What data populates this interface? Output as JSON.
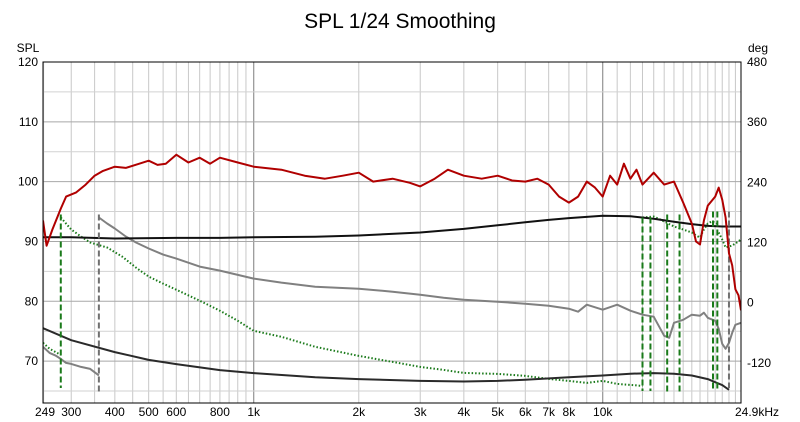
{
  "chart_data": {
    "type": "line",
    "title": "SPL 1/24 Smoothing",
    "y_left_label": "SPL",
    "y_right_label": "deg",
    "x_scale": "log",
    "xlim": [
      249,
      24900
    ],
    "ylim_left": [
      63,
      120
    ],
    "ylim_right": [
      -200,
      480
    ],
    "y_left_ticks": [
      "120",
      "110",
      "100",
      "90",
      "80",
      "70"
    ],
    "y_left_tick_values": [
      120,
      110,
      100,
      90,
      80,
      70
    ],
    "y_right_ticks": [
      "480",
      "360",
      "240",
      "120",
      "0",
      "-120"
    ],
    "y_right_tick_values": [
      480,
      360,
      240,
      120,
      0,
      -120
    ],
    "x_ticks": [
      "249",
      "300",
      "400",
      "500",
      "600",
      "800",
      "1k",
      "2k",
      "3k",
      "4k",
      "5k",
      "6k",
      "7k",
      "8k",
      "10k",
      "24.9kHz"
    ],
    "x_tick_values": [
      249,
      300,
      400,
      500,
      600,
      800,
      1000,
      2000,
      3000,
      4000,
      5000,
      6000,
      7000,
      8000,
      10000,
      24900
    ],
    "grid": true,
    "colors": {
      "spl": "#b00000",
      "phase": "#808080",
      "excess_phase": "#1a7a1a",
      "group_delay": "#2a2a2a",
      "black_curve": "#111111",
      "wrap_dashed": "#707070"
    },
    "series": [
      {
        "key": "spl",
        "axis": "left",
        "style": "solid",
        "points": [
          [
            249,
            93.5
          ],
          [
            255,
            89.3
          ],
          [
            265,
            92.0
          ],
          [
            280,
            95.5
          ],
          [
            290,
            97.5
          ],
          [
            310,
            98.2
          ],
          [
            330,
            99.5
          ],
          [
            350,
            101.0
          ],
          [
            370,
            101.8
          ],
          [
            400,
            102.5
          ],
          [
            430,
            102.3
          ],
          [
            470,
            103.0
          ],
          [
            500,
            103.5
          ],
          [
            530,
            102.8
          ],
          [
            560,
            103.0
          ],
          [
            600,
            104.5
          ],
          [
            650,
            103.2
          ],
          [
            700,
            104.0
          ],
          [
            750,
            103.0
          ],
          [
            800,
            104.0
          ],
          [
            900,
            103.2
          ],
          [
            1000,
            102.5
          ],
          [
            1200,
            102.0
          ],
          [
            1400,
            101.0
          ],
          [
            1600,
            100.5
          ],
          [
            1800,
            101.0
          ],
          [
            2000,
            101.5
          ],
          [
            2200,
            100.0
          ],
          [
            2500,
            100.5
          ],
          [
            2800,
            99.8
          ],
          [
            3000,
            99.2
          ],
          [
            3300,
            100.5
          ],
          [
            3600,
            102.0
          ],
          [
            4000,
            101.0
          ],
          [
            4500,
            100.5
          ],
          [
            5000,
            101.0
          ],
          [
            5500,
            100.2
          ],
          [
            6000,
            100.0
          ],
          [
            6500,
            100.5
          ],
          [
            7000,
            99.5
          ],
          [
            7500,
            97.5
          ],
          [
            8000,
            96.5
          ],
          [
            8500,
            97.5
          ],
          [
            9000,
            100.0
          ],
          [
            9500,
            99.0
          ],
          [
            10000,
            97.5
          ],
          [
            10500,
            101.0
          ],
          [
            11000,
            99.5
          ],
          [
            11500,
            103.0
          ],
          [
            12000,
            100.5
          ],
          [
            12500,
            102.0
          ],
          [
            13000,
            99.5
          ],
          [
            14000,
            101.5
          ],
          [
            15000,
            99.5
          ],
          [
            16000,
            100.0
          ],
          [
            17000,
            96.5
          ],
          [
            18000,
            93.0
          ],
          [
            18500,
            90.0
          ],
          [
            19000,
            89.5
          ],
          [
            19500,
            93.5
          ],
          [
            20000,
            96.0
          ],
          [
            21000,
            97.5
          ],
          [
            21500,
            99.0
          ],
          [
            22000,
            97.0
          ],
          [
            22500,
            94.0
          ],
          [
            23000,
            88.0
          ],
          [
            23500,
            86.0
          ],
          [
            24000,
            82.0
          ],
          [
            24500,
            81.0
          ],
          [
            24900,
            78.5
          ]
        ]
      },
      {
        "key": "phase",
        "axis": "right",
        "style": "solid",
        "points_segments": [
          [
            [
              249,
              -88
            ],
            [
              260,
              -100
            ],
            [
              270,
              -105
            ],
            [
              280,
              -112
            ],
            [
              290,
              -120
            ],
            [
              300,
              -122
            ],
            [
              320,
              -128
            ],
            [
              340,
              -132
            ],
            [
              360,
              -145
            ]
          ],
          [
            [
              360,
              170
            ],
            [
              380,
              158
            ],
            [
              400,
              148
            ],
            [
              430,
              132
            ],
            [
              460,
              120
            ],
            [
              500,
              108
            ],
            [
              550,
              96
            ],
            [
              600,
              88
            ],
            [
              700,
              72
            ],
            [
              800,
              64
            ],
            [
              1000,
              48
            ],
            [
              1200,
              40
            ],
            [
              1500,
              32
            ],
            [
              2000,
              28
            ],
            [
              2500,
              22
            ],
            [
              3000,
              16
            ],
            [
              3500,
              10
            ],
            [
              4000,
              6
            ],
            [
              5000,
              2
            ],
            [
              6000,
              -2
            ],
            [
              7000,
              -6
            ],
            [
              8000,
              -12
            ],
            [
              8500,
              -18
            ],
            [
              9000,
              -4
            ],
            [
              10000,
              -14
            ],
            [
              11000,
              -4
            ],
            [
              12000,
              -16
            ],
            [
              13000,
              -24
            ],
            [
              14000,
              -28
            ],
            [
              15000,
              -66
            ],
            [
              15500,
              -70
            ],
            [
              16000,
              -40
            ],
            [
              17000,
              -34
            ],
            [
              18000,
              -24
            ],
            [
              19000,
              -26
            ],
            [
              19500,
              -20
            ],
            [
              20000,
              -30
            ],
            [
              21000,
              -36
            ],
            [
              21500,
              -52
            ],
            [
              22000,
              -82
            ],
            [
              22500,
              -92
            ],
            [
              23000,
              -80
            ],
            [
              23500,
              -60
            ],
            [
              24000,
              -44
            ],
            [
              24900,
              -40
            ]
          ]
        ]
      },
      {
        "key": "excess_phase",
        "axis": "right",
        "style": "dotted",
        "points_segments": [
          [
            [
              249,
              -80
            ],
            [
              260,
              -92
            ],
            [
              270,
              -98
            ],
            [
              280,
              -104
            ]
          ],
          [
            [
              280,
              170
            ],
            [
              300,
              146
            ],
            [
              320,
              132
            ],
            [
              340,
              120
            ],
            [
              380,
              110
            ],
            [
              420,
              92
            ],
            [
              460,
              70
            ],
            [
              500,
              52
            ],
            [
              550,
              38
            ],
            [
              600,
              26
            ],
            [
              700,
              4
            ],
            [
              800,
              -16
            ],
            [
              900,
              -36
            ],
            [
              1000,
              -56
            ],
            [
              1200,
              -68
            ],
            [
              1500,
              -88
            ],
            [
              2000,
              -106
            ],
            [
              2500,
              -118
            ],
            [
              3000,
              -128
            ],
            [
              3500,
              -134
            ],
            [
              4000,
              -140
            ],
            [
              5000,
              -142
            ],
            [
              6000,
              -146
            ],
            [
              7000,
              -152
            ],
            [
              8000,
              -156
            ],
            [
              9000,
              -160
            ],
            [
              10000,
              -156
            ],
            [
              11000,
              -162
            ],
            [
              12000,
              -164
            ],
            [
              13000,
              -166
            ]
          ],
          [
            [
              13000,
              170
            ],
            [
              14000,
              172
            ],
            [
              15000,
              162
            ],
            [
              16000,
              152
            ],
            [
              17000,
              146
            ],
            [
              18000,
              140
            ],
            [
              18500,
              134
            ],
            [
              19000,
              130
            ],
            [
              19500,
              146
            ],
            [
              20000,
              158
            ],
            [
              20500,
              162
            ],
            [
              21000,
              160
            ],
            [
              21500,
              156
            ]
          ],
          [
            [
              21500,
              140
            ],
            [
              22000,
              126
            ],
            [
              22500,
              110
            ],
            [
              23000,
              112
            ],
            [
              23500,
              114
            ],
            [
              24000,
              118
            ],
            [
              24900,
              126
            ]
          ]
        ]
      },
      {
        "key": "group_delay",
        "axis": "left",
        "style": "solid",
        "points": [
          [
            249,
            75.5
          ],
          [
            300,
            73.5
          ],
          [
            400,
            71.5
          ],
          [
            500,
            70.2
          ],
          [
            600,
            69.5
          ],
          [
            800,
            68.5
          ],
          [
            1000,
            68.0
          ],
          [
            1500,
            67.3
          ],
          [
            2000,
            67.0
          ],
          [
            3000,
            66.7
          ],
          [
            4000,
            66.6
          ],
          [
            5000,
            66.7
          ],
          [
            6000,
            66.9
          ],
          [
            8000,
            67.3
          ],
          [
            10000,
            67.6
          ],
          [
            12000,
            67.9
          ],
          [
            14000,
            68.0
          ],
          [
            16000,
            67.9
          ],
          [
            18000,
            67.6
          ],
          [
            20000,
            67.0
          ],
          [
            22000,
            66.0
          ],
          [
            23000,
            65.2
          ]
        ]
      },
      {
        "key": "black_curve",
        "axis": "left",
        "style": "solid",
        "points": [
          [
            249,
            90.7
          ],
          [
            300,
            90.7
          ],
          [
            400,
            90.5
          ],
          [
            600,
            90.6
          ],
          [
            800,
            90.6
          ],
          [
            1000,
            90.7
          ],
          [
            1500,
            90.8
          ],
          [
            2000,
            91.0
          ],
          [
            3000,
            91.5
          ],
          [
            4000,
            92.1
          ],
          [
            5000,
            92.7
          ],
          [
            6000,
            93.2
          ],
          [
            7000,
            93.6
          ],
          [
            8000,
            93.9
          ],
          [
            10000,
            94.3
          ],
          [
            12000,
            94.2
          ],
          [
            14000,
            93.8
          ],
          [
            16000,
            93.3
          ],
          [
            18000,
            92.9
          ],
          [
            20000,
            92.6
          ],
          [
            22000,
            92.5
          ],
          [
            24900,
            92.5
          ]
        ]
      }
    ],
    "wrap_lines": [
      {
        "x": 280,
        "from": 94.5,
        "to": 65.5,
        "color_key": "excess_phase"
      },
      {
        "x": 360,
        "from": 94.5,
        "to": 64.8,
        "color_key": "wrap_dashed"
      },
      {
        "x": 13000,
        "from": 94.0,
        "to": 65.0,
        "color_key": "excess_phase"
      },
      {
        "x": 13700,
        "from": 94.0,
        "to": 65.0,
        "color_key": "excess_phase"
      },
      {
        "x": 15300,
        "from": 94.5,
        "to": 64.5,
        "color_key": "excess_phase"
      },
      {
        "x": 16600,
        "from": 94.5,
        "to": 64.5,
        "color_key": "excess_phase"
      },
      {
        "x": 20700,
        "from": 95.0,
        "to": 65.0,
        "color_key": "excess_phase"
      },
      {
        "x": 21300,
        "from": 95.0,
        "to": 65.0,
        "color_key": "excess_phase"
      },
      {
        "x": 23000,
        "from": 95.0,
        "to": 65.5,
        "color_key": "wrap_dashed"
      }
    ]
  }
}
